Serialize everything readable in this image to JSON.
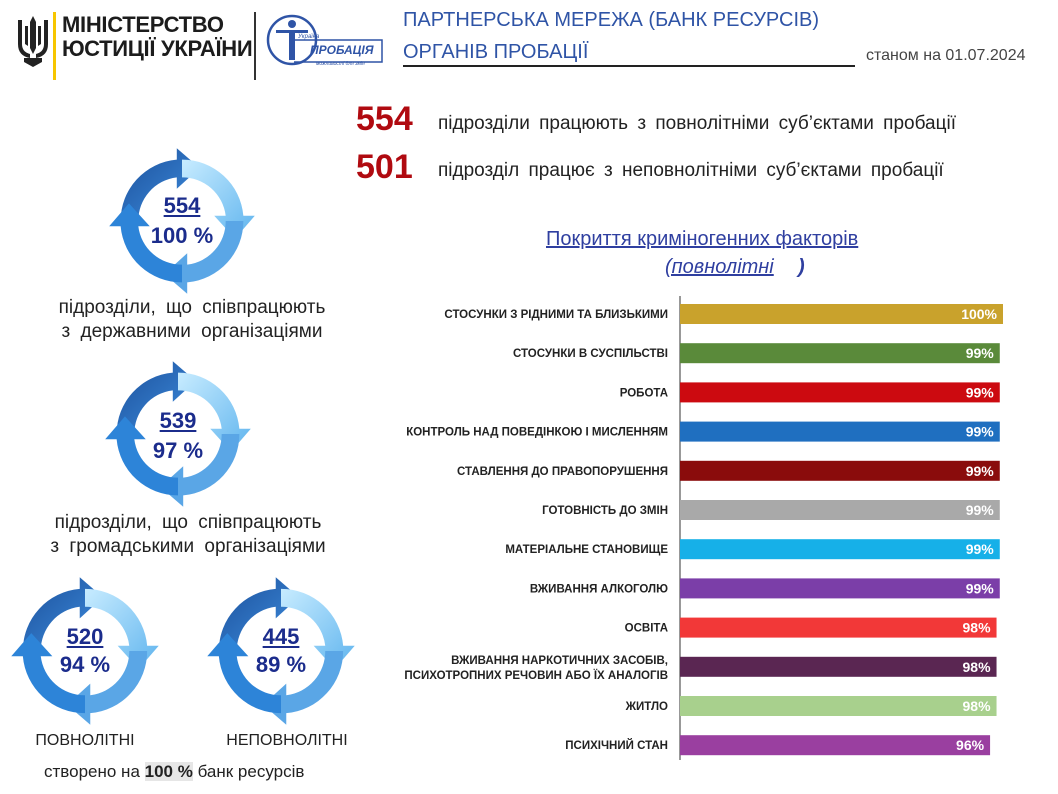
{
  "header": {
    "ministry_line1": "МІНІСТЕРСТВО",
    "ministry_line2": "ЮСТИЦІЇ УКРАЇНИ",
    "logo_top": "Україна",
    "logo_main": "ПРОБАЦІЯ",
    "logo_bottom": "можливості для змін",
    "title_line1": "ПАРТНЕРСЬКА МЕРЕЖА (БАНК РЕСУРСІВ)",
    "title_line2": "ОРГАНІВ ПРОБАЦІЇ",
    "as_of": "станом на 01.07.2024"
  },
  "stats": [
    {
      "number": "554",
      "text": "підрозділи працюють з повнолітніми суб’єктами пробації"
    },
    {
      "number": "501",
      "text": "підрозділ працює з неповнолітніми суб’єктами пробації"
    }
  ],
  "cycles": [
    {
      "number": "554",
      "percent": "100 %",
      "caption_line1": "підрозділи, що співпрацюють",
      "caption_line2": "з державними організаціями"
    },
    {
      "number": "539",
      "percent": "97 %",
      "caption_line1": "підрозділи, що співпрацюють",
      "caption_line2": "з громадськими організаціями"
    },
    {
      "number": "520",
      "percent": "94 %",
      "caption": "ПОВНОЛІТНІ"
    },
    {
      "number": "445",
      "percent": "89 %",
      "caption": "НЕПОВНОЛІТНІ"
    }
  ],
  "footer": {
    "before": "створено на",
    "percent": "100 %",
    "after": "банк ресурсів"
  },
  "colors": {
    "accent_blue": "#2f54a6",
    "stat_red": "#b00a10",
    "cycle_dark": "#2a6fc0",
    "cycle_light": "#8fd0f5"
  },
  "chart_data": {
    "type": "bar",
    "orientation": "horizontal",
    "title": "Покриття криміногенних факторів",
    "subtitle": "(повнолітні",
    "subtitle_suffix": ")",
    "value_suffix": "%",
    "xlim": [
      0,
      100
    ],
    "grid": false,
    "categories": [
      "СТОСУНКИ З РІДНИМИ ТА БЛИЗЬКИМИ",
      "СТОСУНКИ В СУСПІЛЬСТВІ",
      "РОБОТА",
      "КОНТРОЛЬ НАД ПОВЕДІНКОЮ І МИСЛЕННЯМ",
      "СТАВЛЕННЯ ДО ПРАВОПОРУШЕННЯ",
      "ГОТОВНІСТЬ ДО ЗМІН",
      "МАТЕРІАЛЬНЕ СТАНОВИЩЕ",
      "ВЖИВАННЯ АЛКОГОЛЮ",
      "ОСВІТА",
      "ВЖИВАННЯ НАРКОТИЧНИХ ЗАСОБІВ,\nПСИХОТРОПНИХ РЕЧОВИН АБО ЇХ АНАЛОГІВ",
      "ЖИТЛО",
      "ПСИХІЧНИЙ СТАН"
    ],
    "values": [
      100,
      99,
      99,
      99,
      99,
      99,
      99,
      99,
      98,
      98,
      98,
      96
    ],
    "colors": [
      "#c9a22c",
      "#5a8a3a",
      "#cc0a10",
      "#1f6fc0",
      "#8a0c0c",
      "#a9a9a9",
      "#16b0e8",
      "#7b3ea8",
      "#f23838",
      "#5a2652",
      "#a8d08d",
      "#9a3fa0"
    ]
  }
}
